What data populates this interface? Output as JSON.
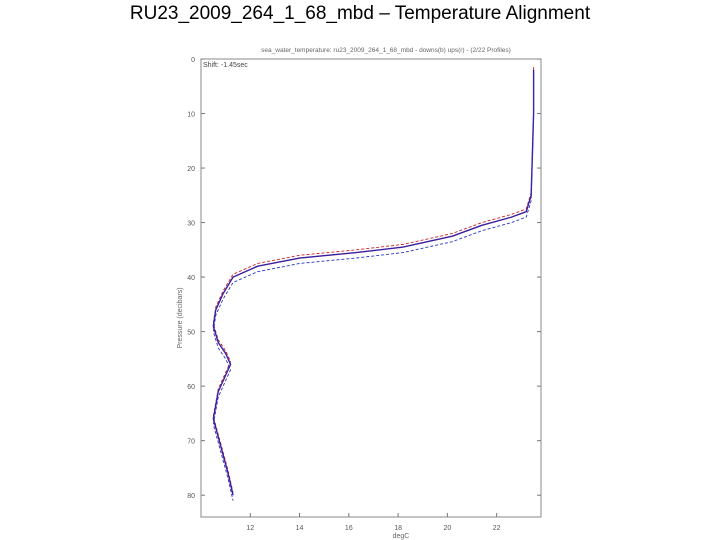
{
  "slide": {
    "title": "RU23_2009_264_1_68_mbd – Temperature Alignment"
  },
  "chart_data": {
    "type": "line",
    "title": "sea_water_temperature: ru23_2009_264_1_68_mbd - downs(b) ups(r) - (2/22 Profiles)",
    "xlabel": "degC",
    "ylabel": "Pressure (decibars)",
    "annotation": "Shift: -1.45sec",
    "xlim": [
      10.0,
      23.8
    ],
    "ylim": [
      0,
      84
    ],
    "y_inverted": true,
    "xticks": [
      12,
      14,
      16,
      18,
      20,
      22
    ],
    "yticks": [
      0,
      10,
      20,
      30,
      40,
      50,
      60,
      70,
      80
    ],
    "grid": false,
    "series": [
      {
        "color": "#cc2222",
        "dash": "3,2",
        "offset": -0.5,
        "x": [
          23.5,
          23.5,
          23.4,
          23.2,
          22.6,
          21.4,
          20.2,
          18.2,
          16.3,
          14.0,
          12.3,
          11.3,
          10.9,
          10.6,
          10.5,
          10.7,
          11.0,
          11.2,
          11.0,
          10.7,
          10.5,
          10.8,
          11.1,
          11.3
        ],
        "y": [
          2,
          10,
          25,
          28,
          29,
          30.5,
          32.5,
          34.5,
          35.5,
          36.5,
          38,
          40,
          43,
          46,
          49,
          52,
          54,
          56,
          58,
          61,
          66,
          71,
          76,
          80
        ]
      },
      {
        "color": "#3b1e9e",
        "dash": "",
        "offset": 0,
        "x": [
          23.5,
          23.5,
          23.4,
          23.2,
          22.6,
          21.4,
          20.2,
          18.2,
          16.3,
          14.0,
          12.3,
          11.3,
          10.9,
          10.6,
          10.5,
          10.7,
          11.0,
          11.2,
          11.0,
          10.7,
          10.5,
          10.8,
          11.1,
          11.3
        ],
        "y": [
          2,
          10,
          25,
          28,
          29,
          30.5,
          32.5,
          34.5,
          35.5,
          36.5,
          38,
          40,
          43,
          46,
          49,
          52,
          54,
          56,
          58,
          61,
          66,
          71,
          76,
          80
        ]
      },
      {
        "color": "#2233cc",
        "dash": "3,2",
        "offset": 1.0,
        "x": [
          23.5,
          23.5,
          23.4,
          23.2,
          22.6,
          21.4,
          20.2,
          18.2,
          16.3,
          14.0,
          12.3,
          11.3,
          10.9,
          10.6,
          10.5,
          10.7,
          11.0,
          11.2,
          11.0,
          10.7,
          10.5,
          10.8,
          11.1,
          11.3
        ],
        "y": [
          2,
          10,
          25,
          28,
          29,
          30.5,
          32.5,
          34.5,
          35.5,
          36.5,
          38,
          40,
          43,
          46,
          49,
          52,
          54,
          56,
          58,
          61,
          66,
          71,
          76,
          80
        ]
      }
    ]
  }
}
